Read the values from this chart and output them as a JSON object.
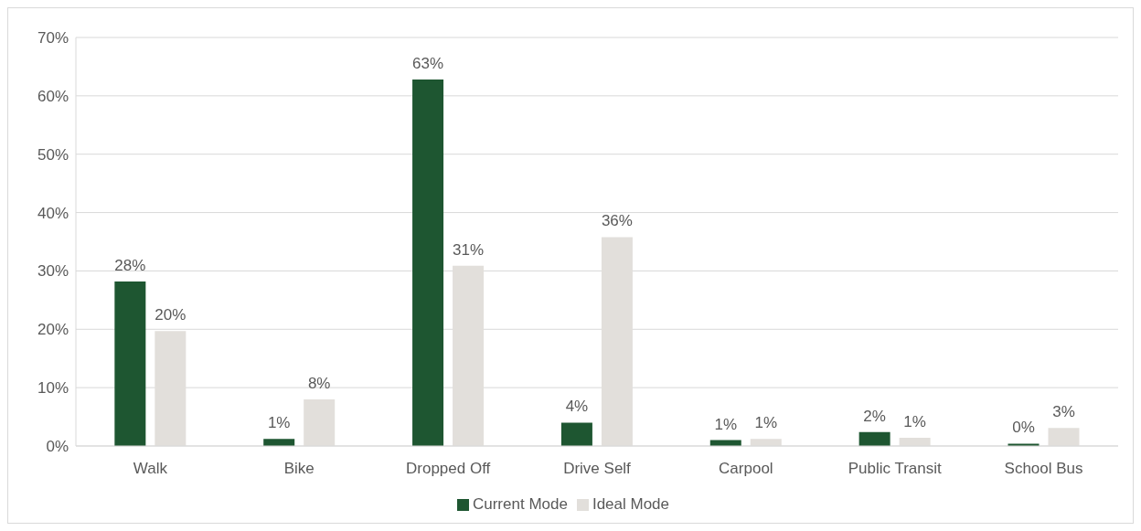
{
  "chart_data": {
    "type": "bar",
    "categories": [
      "Walk",
      "Bike",
      "Dropped Off",
      "Drive Self",
      "Carpool",
      "Public Transit",
      "School Bus"
    ],
    "series": [
      {
        "name": "Current Mode",
        "color": "#1e5631",
        "values": [
          28.2,
          1.2,
          62.8,
          4.0,
          1.0,
          2.4,
          0.4
        ],
        "value_labels": [
          "28%",
          "1%",
          "63%",
          "4%",
          "1%",
          "2%",
          "0%"
        ]
      },
      {
        "name": "Ideal Mode",
        "color": "#e2dfdb",
        "values": [
          19.7,
          8.0,
          30.9,
          35.8,
          1.2,
          1.4,
          3.1
        ],
        "value_labels": [
          "20%",
          "8%",
          "31%",
          "36%",
          "1%",
          "1%",
          "3%"
        ]
      }
    ],
    "ylim": [
      0,
      70
    ],
    "yticks": [
      {
        "value": 0,
        "label": "0%"
      },
      {
        "value": 10,
        "label": "10%"
      },
      {
        "value": 20,
        "label": "20%"
      },
      {
        "value": 30,
        "label": "30%"
      },
      {
        "value": 40,
        "label": "40%"
      },
      {
        "value": 50,
        "label": "50%"
      },
      {
        "value": 60,
        "label": "60%"
      },
      {
        "value": 70,
        "label": "70%"
      }
    ],
    "grid": "y",
    "legend": "bottom"
  }
}
